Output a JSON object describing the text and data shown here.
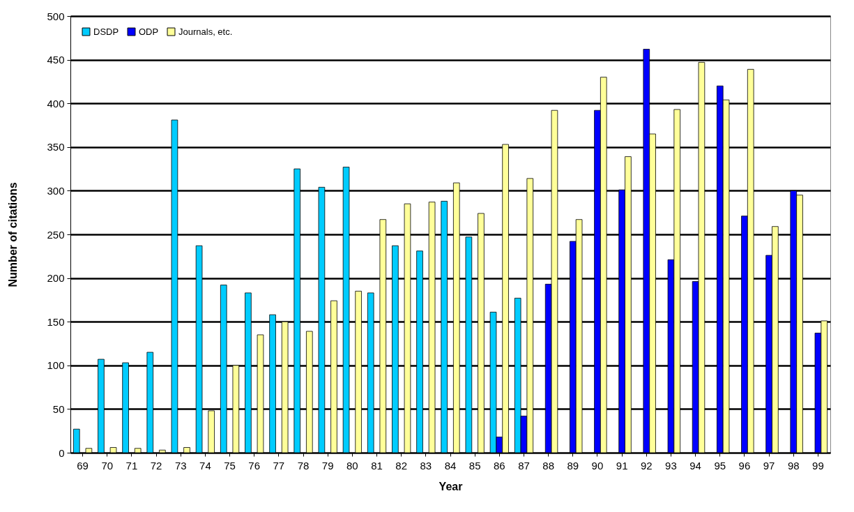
{
  "chart_data": {
    "type": "bar",
    "xlabel": "Year",
    "ylabel": "Number of citations",
    "categories": [
      "69",
      "70",
      "71",
      "72",
      "73",
      "74",
      "75",
      "76",
      "77",
      "78",
      "79",
      "80",
      "81",
      "82",
      "83",
      "84",
      "85",
      "86",
      "87",
      "88",
      "89",
      "90",
      "91",
      "92",
      "93",
      "94",
      "95",
      "96",
      "97",
      "98",
      "99"
    ],
    "series": [
      {
        "name": "DSDP",
        "color": "#00ccff",
        "values": [
          27,
          107,
          103,
          115,
          381,
          237,
          192,
          183,
          158,
          325,
          304,
          327,
          183,
          237,
          231,
          288,
          247,
          161,
          177,
          null,
          null,
          null,
          null,
          null,
          null,
          null,
          null,
          null,
          null,
          null,
          null
        ]
      },
      {
        "name": "ODP",
        "color": "#0000ff",
        "values": [
          null,
          null,
          null,
          null,
          null,
          null,
          null,
          null,
          null,
          null,
          null,
          null,
          null,
          null,
          null,
          null,
          null,
          18,
          42,
          193,
          242,
          392,
          301,
          462,
          221,
          196,
          420,
          271,
          226,
          300,
          137
        ]
      },
      {
        "name": "Journals, etc.",
        "color": "#ffff99",
        "values": [
          5,
          6,
          5,
          3,
          6,
          48,
          100,
          135,
          150,
          139,
          174,
          185,
          267,
          285,
          287,
          309,
          274,
          353,
          314,
          392,
          267,
          430,
          339,
          365,
          393,
          447,
          404,
          439,
          259,
          295,
          151
        ]
      }
    ],
    "ylim": [
      0,
      500
    ],
    "yticks": [
      0,
      50,
      100,
      150,
      200,
      250,
      300,
      350,
      400,
      450,
      500
    ],
    "grid": "y",
    "legend": "top left"
  }
}
